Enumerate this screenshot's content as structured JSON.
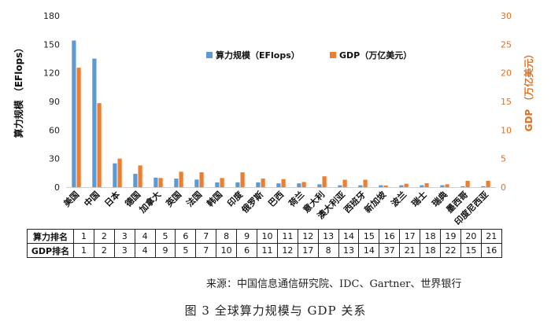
{
  "chart_data": {
    "type": "bar",
    "categories": [
      "美国",
      "中国",
      "日本",
      "德国",
      "加拿大",
      "英国",
      "法国",
      "韩国",
      "印度",
      "俄罗斯",
      "巴西",
      "荷兰",
      "意大利",
      "澳大利亚",
      "西班牙",
      "新加坡",
      "波兰",
      "瑞士",
      "瑞典",
      "墨西哥",
      "印度尼西亚"
    ],
    "series": [
      {
        "name": "算力规模（EFlops）",
        "axis": "left",
        "color": "#5B9BD5",
        "values": [
          154,
          135,
          25,
          14,
          10,
          9,
          8,
          5,
          5,
          5,
          4,
          4,
          3,
          2,
          2,
          2,
          2,
          2,
          2,
          1,
          1
        ]
      },
      {
        "name": "GDP（万亿美元）",
        "axis": "right",
        "color": "#ED7D31",
        "values": [
          20.9,
          14.7,
          5.0,
          3.8,
          1.6,
          2.7,
          2.6,
          1.6,
          2.6,
          1.5,
          1.4,
          0.9,
          1.9,
          1.3,
          1.3,
          0.3,
          0.6,
          0.7,
          0.5,
          1.1,
          1.1
        ]
      }
    ],
    "ylabel": "算力规模 （EFlops）",
    "ylabel_right": "GDP （万亿美元）",
    "ylim": [
      0,
      180
    ],
    "ylim_right": [
      0,
      30
    ],
    "yticks": [
      0,
      30,
      60,
      90,
      120,
      150,
      180
    ],
    "yticks_right": [
      0,
      5,
      10,
      15,
      20,
      25,
      30
    ],
    "legend_position": "top-right",
    "grid": false
  },
  "table": {
    "rows": [
      {
        "label": "算力排名",
        "values": [
          "1",
          "2",
          "3",
          "4",
          "5",
          "6",
          "7",
          "8",
          "9",
          "10",
          "11",
          "12",
          "13",
          "14",
          "15",
          "16",
          "17",
          "18",
          "19",
          "20",
          "21"
        ]
      },
      {
        "label": "GDP排名",
        "values": [
          "1",
          "2",
          "3",
          "4",
          "9",
          "5",
          "7",
          "10",
          "6",
          "11",
          "12",
          "17",
          "8",
          "13",
          "14",
          "37",
          "21",
          "18",
          "22",
          "15",
          "16"
        ]
      }
    ]
  },
  "source": "来源：中国信息通信研究院、IDC、Gartner、世界银行",
  "caption": "图 3  全球算力规模与 GDP 关系",
  "colors": {
    "compute": "#5B9BD5",
    "gdp": "#ED7D31",
    "gdp_axis": "#E07020"
  }
}
